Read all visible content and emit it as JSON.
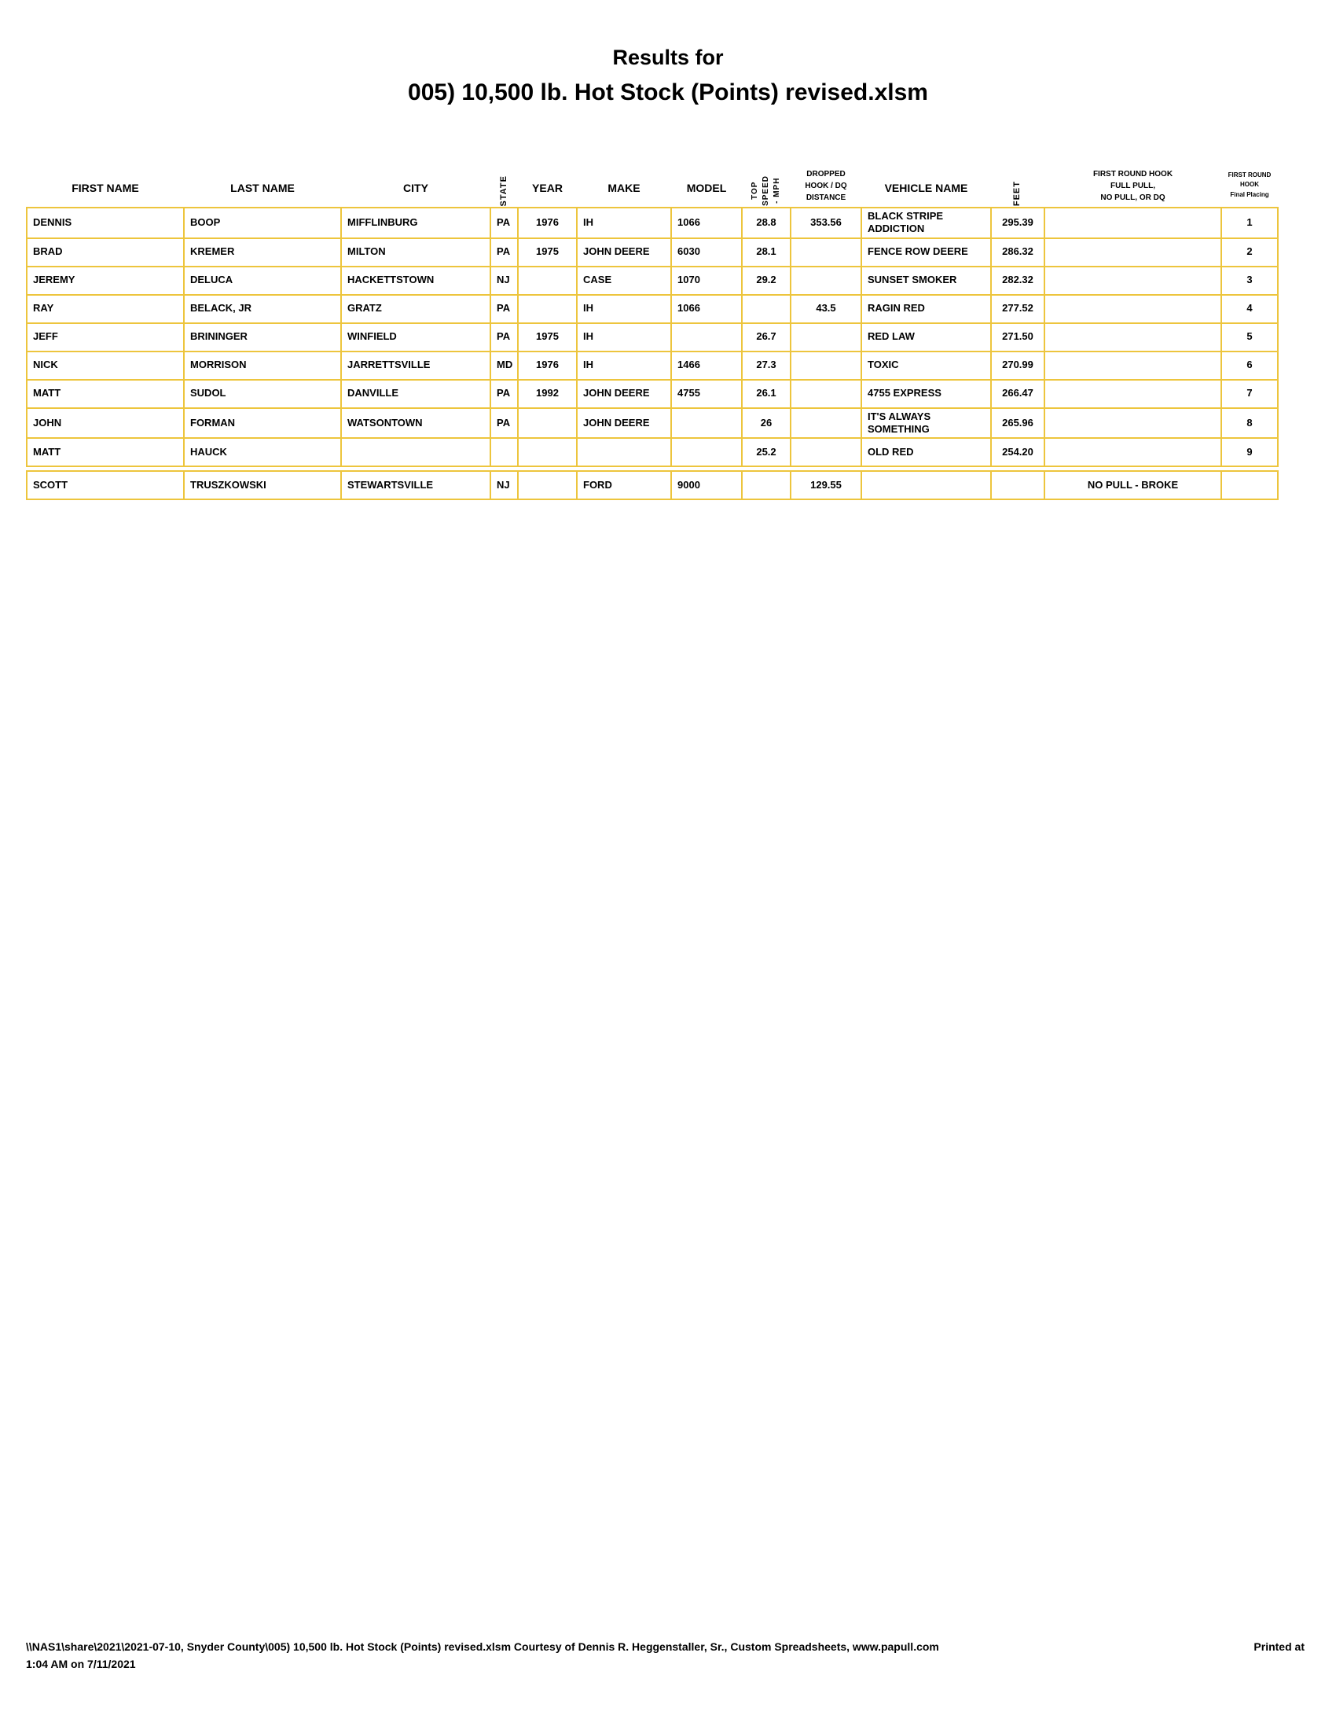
{
  "title": {
    "line1": "Results for",
    "line2": "005) 10,500 lb. Hot Stock (Points) revised.xlsm"
  },
  "colors": {
    "table_border": "#EDC53D",
    "text": "#000000",
    "background": "#FFFFFF"
  },
  "table": {
    "headers": {
      "first_name": "FIRST NAME",
      "last_name": "LAST NAME",
      "city": "CITY",
      "state": "STATE",
      "year": "YEAR",
      "make": "MAKE",
      "model": "MODEL",
      "top_speed": "TOP\nSPEED\n- MPH",
      "dropped": "DROPPED\nHOOK / DQ\nDISTANCE",
      "vehicle": "VEHICLE NAME",
      "feet": "FEET",
      "first_round": "FIRST ROUND HOOK\nFULL PULL,\nNO PULL, OR DQ",
      "placing": "FIRST ROUND\nHOOK\nFinal Placing"
    },
    "rows": [
      {
        "first_name": "DENNIS",
        "last_name": "BOOP",
        "city": "MIFFLINBURG",
        "state": "PA",
        "year": "1976",
        "make": "IH",
        "model": "1066",
        "top_speed": "28.8",
        "dropped": "353.56",
        "vehicle": "BLACK STRIPE ADDICTION",
        "feet": "295.39",
        "first_round": "",
        "placing": "1"
      },
      {
        "first_name": "BRAD",
        "last_name": "KREMER",
        "city": "MILTON",
        "state": "PA",
        "year": "1975",
        "make": "JOHN DEERE",
        "model": "6030",
        "top_speed": "28.1",
        "dropped": "",
        "vehicle": "FENCE ROW DEERE",
        "feet": "286.32",
        "first_round": "",
        "placing": "2"
      },
      {
        "first_name": "JEREMY",
        "last_name": "DELUCA",
        "city": "HACKETTSTOWN",
        "state": "NJ",
        "year": "",
        "make": "CASE",
        "model": "1070",
        "top_speed": "29.2",
        "dropped": "",
        "vehicle": "SUNSET SMOKER",
        "feet": "282.32",
        "first_round": "",
        "placing": "3"
      },
      {
        "first_name": "RAY",
        "last_name": "BELACK, JR",
        "city": "GRATZ",
        "state": "PA",
        "year": "",
        "make": "IH",
        "model": "1066",
        "top_speed": "",
        "dropped": "43.5",
        "vehicle": "RAGIN RED",
        "feet": "277.52",
        "first_round": "",
        "placing": "4"
      },
      {
        "first_name": "JEFF",
        "last_name": "BRININGER",
        "city": "WINFIELD",
        "state": "PA",
        "year": "1975",
        "make": "IH",
        "model": "",
        "top_speed": "26.7",
        "dropped": "",
        "vehicle": "RED LAW",
        "feet": "271.50",
        "first_round": "",
        "placing": "5"
      },
      {
        "first_name": "NICK",
        "last_name": "MORRISON",
        "city": "JARRETTSVILLE",
        "state": "MD",
        "year": "1976",
        "make": "IH",
        "model": "1466",
        "top_speed": "27.3",
        "dropped": "",
        "vehicle": "TOXIC",
        "feet": "270.99",
        "first_round": "",
        "placing": "6"
      },
      {
        "first_name": "MATT",
        "last_name": "SUDOL",
        "city": "DANVILLE",
        "state": "PA",
        "year": "1992",
        "make": "JOHN DEERE",
        "model": "4755",
        "top_speed": "26.1",
        "dropped": "",
        "vehicle": "4755 EXPRESS",
        "feet": "266.47",
        "first_round": "",
        "placing": "7"
      },
      {
        "first_name": "JOHN",
        "last_name": "FORMAN",
        "city": "WATSONTOWN",
        "state": "PA",
        "year": "",
        "make": "JOHN DEERE",
        "model": "",
        "top_speed": "26",
        "dropped": "",
        "vehicle": "IT'S ALWAYS SOMETHING",
        "feet": "265.96",
        "first_round": "",
        "placing": "8"
      },
      {
        "first_name": "MATT",
        "last_name": "HAUCK",
        "city": "",
        "state": "",
        "year": "",
        "make": "",
        "model": "",
        "top_speed": "25.2",
        "dropped": "",
        "vehicle": "OLD RED",
        "feet": "254.20",
        "first_round": "",
        "placing": "9"
      }
    ],
    "no_pull_rows": [
      {
        "first_name": "SCOTT",
        "last_name": "TRUSZKOWSKI",
        "city": "STEWARTSVILLE",
        "state": "NJ",
        "year": "",
        "make": "FORD",
        "model": "9000",
        "top_speed": "",
        "dropped": "129.55",
        "vehicle": "",
        "feet": "",
        "first_round": "NO PULL - BROKE",
        "placing": ""
      }
    ]
  },
  "footer": {
    "path_line": "\\\\NAS1\\share\\2021\\2021-07-10, Snyder County\\005) 10,500 lb. Hot Stock (Points) revised.xlsm  Courtesy of Dennis R. Heggenstaller, Sr., Custom Spreadsheets, www.papull.com",
    "printed_at_label": "Printed at",
    "printed_time": "1:04 AM on 7/11/2021"
  }
}
